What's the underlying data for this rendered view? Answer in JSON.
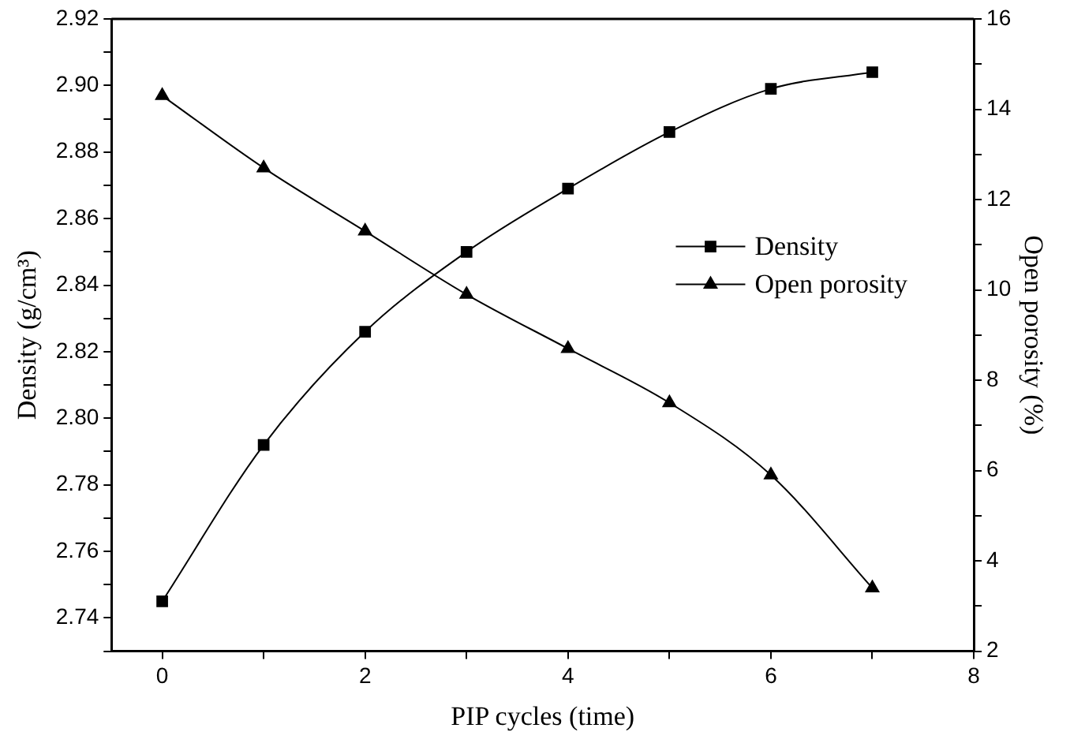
{
  "chart_data": {
    "type": "line",
    "xlabel": "PIP cycles (time)",
    "ylabel": "Density (g/cm³)",
    "y2label": "Open porosity (%)",
    "x": [
      0,
      1,
      2,
      3,
      4,
      5,
      6,
      7
    ],
    "xlim": [
      -0.5,
      8
    ],
    "xticks": [
      0,
      {
        "value": 1,
        "label": null
      },
      2,
      {
        "value": 3,
        "label": null
      },
      4,
      {
        "value": 5,
        "label": null
      },
      6,
      {
        "value": 7,
        "label": null
      },
      8
    ],
    "ylim": [
      2.73,
      2.92
    ],
    "yticks": [
      {
        "value": 2.73,
        "label": null
      },
      {
        "value": 2.74,
        "label": "2.74"
      },
      {
        "value": 2.75,
        "label": null
      },
      {
        "value": 2.76,
        "label": "2.76"
      },
      {
        "value": 2.77,
        "label": null
      },
      {
        "value": 2.78,
        "label": "2.78"
      },
      {
        "value": 2.79,
        "label": null
      },
      {
        "value": 2.8,
        "label": "2.80"
      },
      {
        "value": 2.81,
        "label": null
      },
      {
        "value": 2.82,
        "label": "2.82"
      },
      {
        "value": 2.83,
        "label": null
      },
      {
        "value": 2.84,
        "label": "2.84"
      },
      {
        "value": 2.85,
        "label": null
      },
      {
        "value": 2.86,
        "label": "2.86"
      },
      {
        "value": 2.87,
        "label": null
      },
      {
        "value": 2.88,
        "label": "2.88"
      },
      {
        "value": 2.89,
        "label": null
      },
      {
        "value": 2.9,
        "label": "2.90"
      },
      {
        "value": 2.91,
        "label": null
      },
      {
        "value": 2.92,
        "label": "2.92"
      }
    ],
    "y2lim": [
      2,
      16
    ],
    "y2ticks": [
      2,
      {
        "value": 3,
        "label": null
      },
      4,
      {
        "value": 5,
        "label": null
      },
      6,
      {
        "value": 7,
        "label": null
      },
      8,
      {
        "value": 9,
        "label": null
      },
      10,
      {
        "value": 11,
        "label": null
      },
      12,
      {
        "value": 13,
        "label": null
      },
      14,
      {
        "value": 15,
        "label": null
      },
      16
    ],
    "series": [
      {
        "name": "Density",
        "color": "#000000",
        "marker": "square",
        "values": [
          2.745,
          2.792,
          2.826,
          2.85,
          2.869,
          2.886,
          2.899,
          2.904
        ]
      },
      {
        "name": "Open porosity",
        "color": "#000000",
        "marker": "triangle",
        "axis": "y2",
        "values": [
          14.3,
          12.7,
          11.3,
          9.9,
          8.7,
          7.5,
          5.9,
          3.4
        ]
      }
    ],
    "legend": "right",
    "grid": false,
    "line_style": "solid"
  }
}
